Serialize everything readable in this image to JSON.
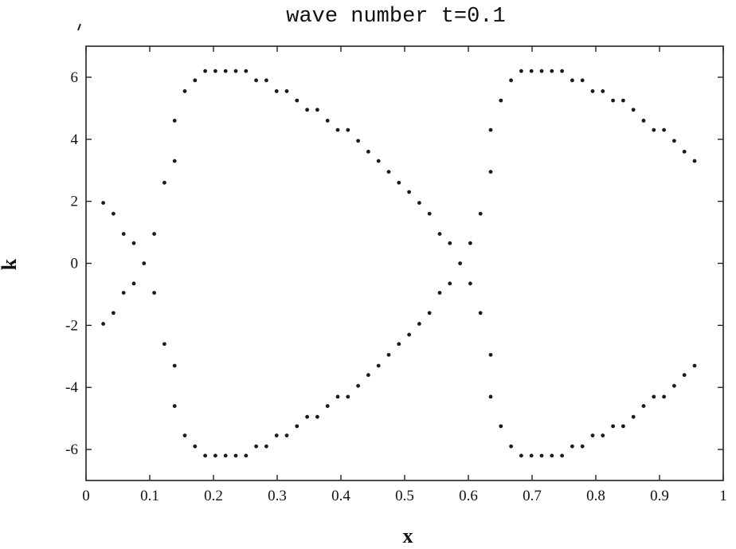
{
  "chart_data": {
    "type": "scatter",
    "title": "wave number t=0.1",
    "xlabel": "x",
    "ylabel": "k",
    "xlim": [
      0,
      1
    ],
    "ylim": [
      -7,
      7
    ],
    "grid": false,
    "legend": "none",
    "xticks": [
      0,
      0.1,
      0.2,
      0.3,
      0.4,
      0.5,
      0.6,
      0.7,
      0.8,
      0.9,
      1
    ],
    "xtick_labels": [
      "0",
      "0.1",
      "0.2",
      "0.3",
      "0.4",
      "0.5",
      "0.6",
      "0.7",
      "0.8",
      "0.9",
      "1"
    ],
    "yticks": [
      -6,
      -4,
      -2,
      0,
      2,
      4,
      6
    ],
    "ytick_labels": [
      "-6",
      "-4",
      "-2",
      "0",
      "2",
      "4",
      "6"
    ],
    "marker_color": "#1a1a1a",
    "series": [
      {
        "points": [
          [
            0.027,
            1.95
          ],
          [
            0.043,
            1.6
          ],
          [
            0.059,
            0.95
          ],
          [
            0.075,
            0.65
          ],
          [
            0.091,
            0.0
          ],
          [
            0.107,
            0.95
          ],
          [
            0.123,
            2.6
          ],
          [
            0.139,
            3.3
          ],
          [
            0.139,
            4.6
          ],
          [
            0.155,
            5.55
          ],
          [
            0.171,
            5.9
          ],
          [
            0.187,
            6.2
          ],
          [
            0.203,
            6.2
          ],
          [
            0.219,
            6.2
          ],
          [
            0.235,
            6.2
          ],
          [
            0.251,
            6.2
          ],
          [
            0.267,
            5.9
          ],
          [
            0.283,
            5.9
          ],
          [
            0.299,
            5.55
          ],
          [
            0.315,
            5.55
          ],
          [
            0.331,
            5.25
          ],
          [
            0.347,
            4.95
          ],
          [
            0.363,
            4.95
          ],
          [
            0.379,
            4.6
          ],
          [
            0.395,
            4.3
          ],
          [
            0.411,
            4.3
          ],
          [
            0.427,
            3.95
          ],
          [
            0.443,
            3.6
          ],
          [
            0.459,
            3.3
          ],
          [
            0.475,
            2.95
          ],
          [
            0.491,
            2.6
          ],
          [
            0.507,
            2.3
          ],
          [
            0.523,
            1.95
          ],
          [
            0.539,
            1.6
          ],
          [
            0.555,
            0.95
          ],
          [
            0.571,
            0.65
          ],
          [
            0.587,
            0.0
          ],
          [
            0.603,
            0.65
          ],
          [
            0.619,
            1.6
          ],
          [
            0.635,
            2.95
          ],
          [
            0.635,
            4.3
          ],
          [
            0.651,
            5.25
          ],
          [
            0.667,
            5.9
          ],
          [
            0.683,
            6.2
          ],
          [
            0.699,
            6.2
          ],
          [
            0.715,
            6.2
          ],
          [
            0.731,
            6.2
          ],
          [
            0.747,
            6.2
          ],
          [
            0.763,
            5.9
          ],
          [
            0.779,
            5.9
          ],
          [
            0.795,
            5.55
          ],
          [
            0.811,
            5.55
          ],
          [
            0.827,
            5.25
          ],
          [
            0.843,
            5.25
          ],
          [
            0.859,
            4.95
          ],
          [
            0.875,
            4.6
          ],
          [
            0.891,
            4.3
          ],
          [
            0.907,
            4.3
          ],
          [
            0.923,
            3.95
          ],
          [
            0.939,
            3.6
          ],
          [
            0.955,
            3.3
          ],
          [
            0.027,
            -1.95
          ],
          [
            0.043,
            -1.6
          ],
          [
            0.059,
            -0.95
          ],
          [
            0.075,
            -0.65
          ],
          [
            0.107,
            -0.95
          ],
          [
            0.123,
            -2.6
          ],
          [
            0.139,
            -3.3
          ],
          [
            0.139,
            -4.6
          ],
          [
            0.155,
            -5.55
          ],
          [
            0.171,
            -5.9
          ],
          [
            0.187,
            -6.2
          ],
          [
            0.203,
            -6.2
          ],
          [
            0.219,
            -6.2
          ],
          [
            0.235,
            -6.2
          ],
          [
            0.251,
            -6.2
          ],
          [
            0.267,
            -5.9
          ],
          [
            0.283,
            -5.9
          ],
          [
            0.299,
            -5.55
          ],
          [
            0.315,
            -5.55
          ],
          [
            0.331,
            -5.25
          ],
          [
            0.347,
            -4.95
          ],
          [
            0.363,
            -4.95
          ],
          [
            0.379,
            -4.6
          ],
          [
            0.395,
            -4.3
          ],
          [
            0.411,
            -4.3
          ],
          [
            0.427,
            -3.95
          ],
          [
            0.443,
            -3.6
          ],
          [
            0.459,
            -3.3
          ],
          [
            0.475,
            -2.95
          ],
          [
            0.491,
            -2.6
          ],
          [
            0.507,
            -2.3
          ],
          [
            0.523,
            -1.95
          ],
          [
            0.539,
            -1.6
          ],
          [
            0.555,
            -0.95
          ],
          [
            0.571,
            -0.65
          ],
          [
            0.603,
            -0.65
          ],
          [
            0.619,
            -1.6
          ],
          [
            0.635,
            -2.95
          ],
          [
            0.635,
            -4.3
          ],
          [
            0.651,
            -5.25
          ],
          [
            0.667,
            -5.9
          ],
          [
            0.683,
            -6.2
          ],
          [
            0.699,
            -6.2
          ],
          [
            0.715,
            -6.2
          ],
          [
            0.731,
            -6.2
          ],
          [
            0.747,
            -6.2
          ],
          [
            0.763,
            -5.9
          ],
          [
            0.779,
            -5.9
          ],
          [
            0.795,
            -5.55
          ],
          [
            0.811,
            -5.55
          ],
          [
            0.827,
            -5.25
          ],
          [
            0.843,
            -5.25
          ],
          [
            0.859,
            -4.95
          ],
          [
            0.875,
            -4.6
          ],
          [
            0.891,
            -4.3
          ],
          [
            0.907,
            -4.3
          ],
          [
            0.923,
            -3.95
          ],
          [
            0.939,
            -3.6
          ],
          [
            0.955,
            -3.3
          ]
        ]
      }
    ]
  }
}
